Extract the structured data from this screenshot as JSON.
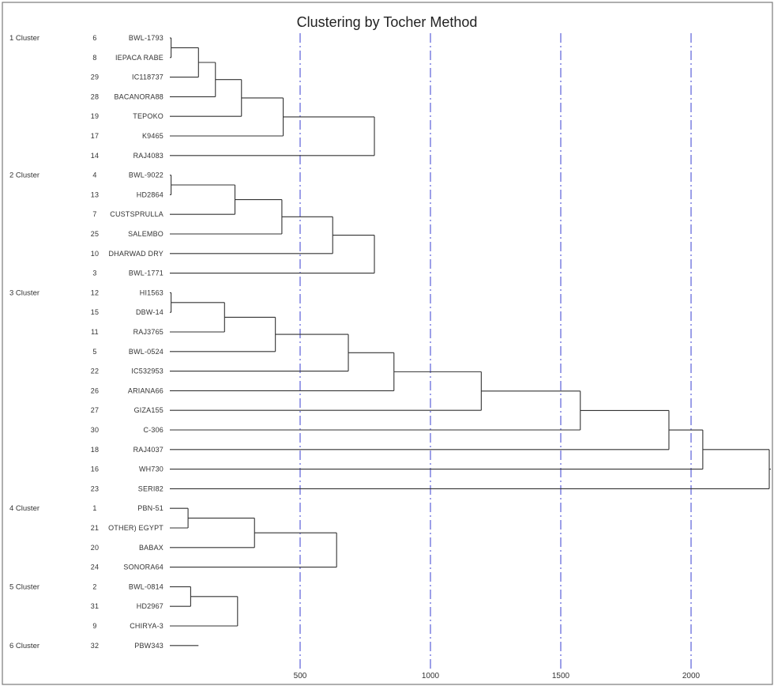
{
  "chart_data": {
    "type": "dendrogram",
    "title": "Clustering by Tocher Method",
    "xlabel": "",
    "ylabel": "",
    "x_ticks": [
      "500",
      "1000",
      "1500",
      "2000"
    ],
    "x_tick_values": [
      500,
      1000,
      1500,
      2000
    ],
    "xlim": [
      0,
      2300
    ],
    "grid": "vertical dash-dot lines at ticks",
    "leaves": [
      {
        "id": 6,
        "name": "BWL-1793"
      },
      {
        "id": 8,
        "name": "IEPACA RABE"
      },
      {
        "id": 29,
        "name": "IC118737"
      },
      {
        "id": 28,
        "name": "BACANORA88"
      },
      {
        "id": 19,
        "name": "TEPOKO"
      },
      {
        "id": 17,
        "name": "K9465"
      },
      {
        "id": 14,
        "name": "RAJ4083"
      },
      {
        "id": 4,
        "name": "BWL-9022"
      },
      {
        "id": 13,
        "name": "HD2864"
      },
      {
        "id": 7,
        "name": "CUSTSPRULLA"
      },
      {
        "id": 25,
        "name": "SALEMBO"
      },
      {
        "id": 10,
        "name": "DHARWAD DRY"
      },
      {
        "id": 3,
        "name": "BWL-1771"
      },
      {
        "id": 12,
        "name": "HI1563"
      },
      {
        "id": 15,
        "name": "DBW-14"
      },
      {
        "id": 11,
        "name": "RAJ3765"
      },
      {
        "id": 5,
        "name": "BWL-0524"
      },
      {
        "id": 22,
        "name": "IC532953"
      },
      {
        "id": 26,
        "name": "ARIANA66"
      },
      {
        "id": 27,
        "name": "GIZA155"
      },
      {
        "id": 30,
        "name": "C-306"
      },
      {
        "id": 18,
        "name": "RAJ4037"
      },
      {
        "id": 16,
        "name": "WH730"
      },
      {
        "id": 23,
        "name": "SERI82"
      },
      {
        "id": 1,
        "name": "PBN-51"
      },
      {
        "id": 21,
        "name": "OTHER) EGYPT"
      },
      {
        "id": 20,
        "name": "BABAX"
      },
      {
        "id": 24,
        "name": "SONORA64"
      },
      {
        "id": 2,
        "name": "BWL-0814"
      },
      {
        "id": 31,
        "name": "HD2967"
      },
      {
        "id": 9,
        "name": "CHIRYA-3"
      },
      {
        "id": 32,
        "name": "PBW343"
      }
    ],
    "clusters": [
      {
        "label": "1 Cluster",
        "first_leaf": 0
      },
      {
        "label": "2 Cluster",
        "first_leaf": 7
      },
      {
        "label": "3 Cluster",
        "first_leaf": 13
      },
      {
        "label": "4 Cluster",
        "first_leaf": 24
      },
      {
        "label": "5 Cluster",
        "first_leaf": 28
      },
      {
        "label": "6 Cluster",
        "first_leaf": 31
      }
    ],
    "merges": [
      {
        "members": [
          0,
          1
        ],
        "height": 5
      },
      {
        "members": [
          0,
          2
        ],
        "height": 110
      },
      {
        "members": [
          0,
          3
        ],
        "height": 175
      },
      {
        "members": [
          0,
          4
        ],
        "height": 275
      },
      {
        "members": [
          0,
          5
        ],
        "height": 435
      },
      {
        "members": [
          0,
          6
        ],
        "height": 785
      },
      {
        "members": [
          7,
          8
        ],
        "height": 5
      },
      {
        "members": [
          7,
          9
        ],
        "height": 250
      },
      {
        "members": [
          7,
          10
        ],
        "height": 430
      },
      {
        "members": [
          7,
          11
        ],
        "height": 625
      },
      {
        "members": [
          7,
          12
        ],
        "height": 785
      },
      {
        "members": [
          13,
          14
        ],
        "height": 5
      },
      {
        "members": [
          13,
          15
        ],
        "height": 210
      },
      {
        "members": [
          13,
          16
        ],
        "height": 405
      },
      {
        "members": [
          13,
          17
        ],
        "height": 685
      },
      {
        "members": [
          13,
          18
        ],
        "height": 860
      },
      {
        "members": [
          13,
          19
        ],
        "height": 1195
      },
      {
        "members": [
          13,
          20
        ],
        "height": 1575
      },
      {
        "members": [
          13,
          21
        ],
        "height": 1915
      },
      {
        "members": [
          13,
          22
        ],
        "height": 2045
      },
      {
        "members": [
          13,
          23
        ],
        "height": 2300
      },
      {
        "members": [
          24,
          25
        ],
        "height": 70
      },
      {
        "members": [
          24,
          26
        ],
        "height": 325
      },
      {
        "members": [
          24,
          27
        ],
        "height": 640
      },
      {
        "members": [
          28,
          29
        ],
        "height": 80
      },
      {
        "members": [
          28,
          30
        ],
        "height": 260
      }
    ],
    "singleton_stub": {
      "leaf": 31,
      "height": 110
    }
  }
}
